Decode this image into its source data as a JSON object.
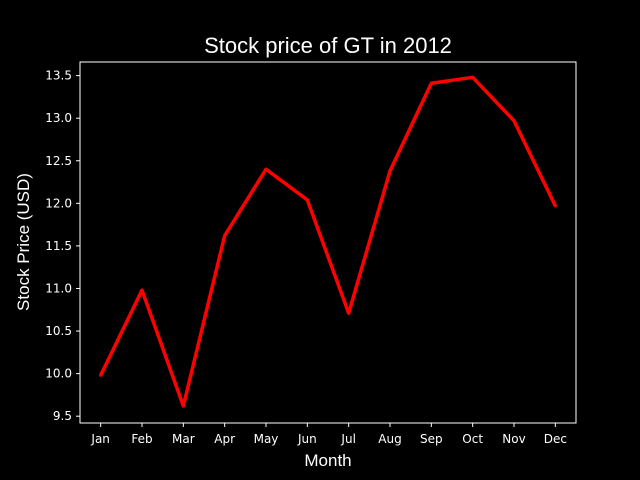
{
  "chart_data": {
    "type": "line",
    "title": "Stock price of GT in 2012",
    "xlabel": "Month",
    "ylabel": "Stock Price (USD)",
    "categories": [
      "Jan",
      "Feb",
      "Mar",
      "Apr",
      "May",
      "Jun",
      "Jul",
      "Aug",
      "Sep",
      "Oct",
      "Nov",
      "Dec"
    ],
    "series": [
      {
        "values": [
          9.98,
          10.98,
          9.62,
          11.62,
          12.4,
          12.04,
          10.71,
          12.38,
          13.41,
          13.48,
          12.97,
          11.97
        ],
        "color": "#ff0000"
      }
    ],
    "yticks": [
      "9.5",
      "10.0",
      "10.5",
      "11.0",
      "11.5",
      "12.0",
      "12.5",
      "13.0",
      "13.5"
    ],
    "ylim": [
      9.42,
      13.66
    ],
    "grid": false,
    "background_color": "#000000",
    "foreground_color": "#ffffff"
  }
}
